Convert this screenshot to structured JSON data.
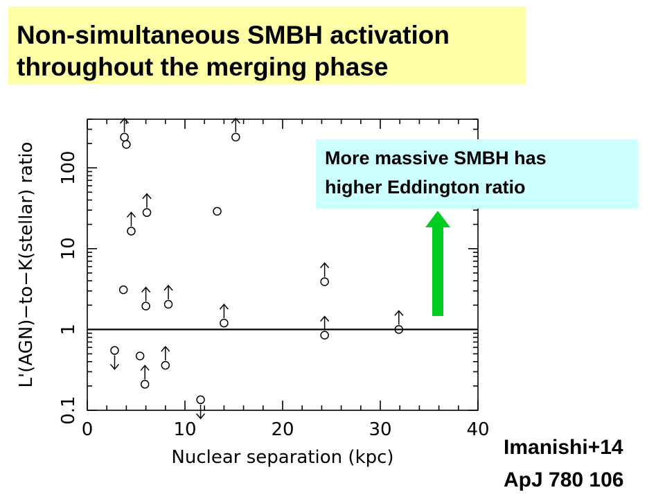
{
  "header": {
    "title_line1": "Non-simultaneous SMBH activation",
    "title_line2": "throughout the merging phase"
  },
  "note": {
    "line1": "More massive SMBH has",
    "line2": "higher Eddington ratio"
  },
  "credit": {
    "line1": "Imanishi+14",
    "line2": "ApJ 780 106"
  },
  "colors": {
    "title_bg": "#ffffa8",
    "note_bg": "#ccffff",
    "arrow": "#00cc22"
  },
  "chart_data": {
    "type": "scatter",
    "xlabel": "Nuclear separation (kpc)",
    "ylabel": "L'(AGN)−to−K(stellar) ratio",
    "xlim": [
      0,
      40
    ],
    "ylim": [
      0.1,
      400
    ],
    "yscale": "log",
    "xticks": [
      0,
      10,
      20,
      30,
      40
    ],
    "xtick_labels": [
      "0",
      "10",
      "20",
      "30",
      "40"
    ],
    "yticks": [
      0.1,
      1,
      10,
      100
    ],
    "ytick_labels": [
      "0.1",
      "1",
      "10",
      "100"
    ],
    "reference_line_y": 1,
    "points": [
      {
        "x": 3.8,
        "y": 240,
        "limit": "lower"
      },
      {
        "x": 4.0,
        "y": 195,
        "limit": "none"
      },
      {
        "x": 15.2,
        "y": 240,
        "limit": "lower"
      },
      {
        "x": 6.1,
        "y": 28,
        "limit": "lower"
      },
      {
        "x": 4.5,
        "y": 16.5,
        "limit": "lower"
      },
      {
        "x": 13.3,
        "y": 29,
        "limit": "none"
      },
      {
        "x": 3.7,
        "y": 3.1,
        "limit": "none"
      },
      {
        "x": 6.0,
        "y": 1.95,
        "limit": "lower"
      },
      {
        "x": 8.3,
        "y": 2.05,
        "limit": "lower"
      },
      {
        "x": 14.0,
        "y": 1.2,
        "limit": "lower"
      },
      {
        "x": 24.3,
        "y": 3.9,
        "limit": "lower"
      },
      {
        "x": 24.3,
        "y": 0.85,
        "limit": "lower"
      },
      {
        "x": 31.9,
        "y": 1.0,
        "limit": "lower"
      },
      {
        "x": 2.8,
        "y": 0.55,
        "limit": "upper"
      },
      {
        "x": 5.4,
        "y": 0.47,
        "limit": "none"
      },
      {
        "x": 8.0,
        "y": 0.36,
        "limit": "lower"
      },
      {
        "x": 5.9,
        "y": 0.21,
        "limit": "lower"
      },
      {
        "x": 11.6,
        "y": 0.135,
        "limit": "upper"
      }
    ]
  }
}
